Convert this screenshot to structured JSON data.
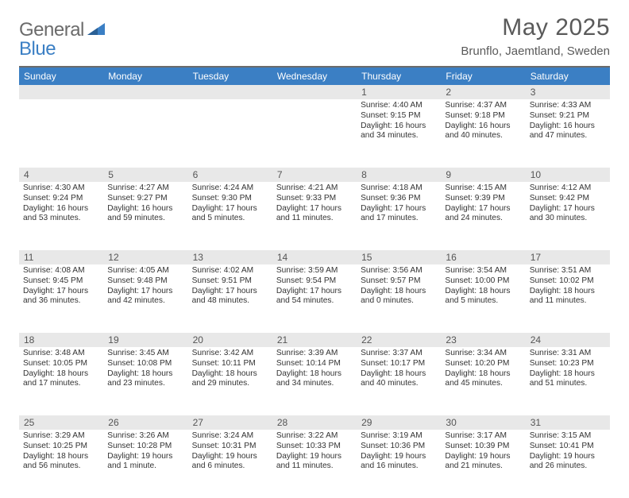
{
  "logo": {
    "part1": "General",
    "part2": "Blue"
  },
  "title": "May 2025",
  "location": "Brunflo, Jaemtland, Sweden",
  "colors": {
    "header_bar": "#3b7fc4",
    "daynum_bg": "#e8e8e8",
    "rule": "#6b6b6b",
    "text": "#333333",
    "title_text": "#5a5a5a",
    "logo_gray": "#6b6b6b",
    "logo_blue": "#3b7fc4",
    "background": "#ffffff"
  },
  "daysOfWeek": [
    "Sunday",
    "Monday",
    "Tuesday",
    "Wednesday",
    "Thursday",
    "Friday",
    "Saturday"
  ],
  "weeks": [
    [
      null,
      null,
      null,
      null,
      {
        "n": "1",
        "sr": "4:40 AM",
        "ss": "9:15 PM",
        "dl": "16 hours and 34 minutes."
      },
      {
        "n": "2",
        "sr": "4:37 AM",
        "ss": "9:18 PM",
        "dl": "16 hours and 40 minutes."
      },
      {
        "n": "3",
        "sr": "4:33 AM",
        "ss": "9:21 PM",
        "dl": "16 hours and 47 minutes."
      }
    ],
    [
      {
        "n": "4",
        "sr": "4:30 AM",
        "ss": "9:24 PM",
        "dl": "16 hours and 53 minutes."
      },
      {
        "n": "5",
        "sr": "4:27 AM",
        "ss": "9:27 PM",
        "dl": "16 hours and 59 minutes."
      },
      {
        "n": "6",
        "sr": "4:24 AM",
        "ss": "9:30 PM",
        "dl": "17 hours and 5 minutes."
      },
      {
        "n": "7",
        "sr": "4:21 AM",
        "ss": "9:33 PM",
        "dl": "17 hours and 11 minutes."
      },
      {
        "n": "8",
        "sr": "4:18 AM",
        "ss": "9:36 PM",
        "dl": "17 hours and 17 minutes."
      },
      {
        "n": "9",
        "sr": "4:15 AM",
        "ss": "9:39 PM",
        "dl": "17 hours and 24 minutes."
      },
      {
        "n": "10",
        "sr": "4:12 AM",
        "ss": "9:42 PM",
        "dl": "17 hours and 30 minutes."
      }
    ],
    [
      {
        "n": "11",
        "sr": "4:08 AM",
        "ss": "9:45 PM",
        "dl": "17 hours and 36 minutes."
      },
      {
        "n": "12",
        "sr": "4:05 AM",
        "ss": "9:48 PM",
        "dl": "17 hours and 42 minutes."
      },
      {
        "n": "13",
        "sr": "4:02 AM",
        "ss": "9:51 PM",
        "dl": "17 hours and 48 minutes."
      },
      {
        "n": "14",
        "sr": "3:59 AM",
        "ss": "9:54 PM",
        "dl": "17 hours and 54 minutes."
      },
      {
        "n": "15",
        "sr": "3:56 AM",
        "ss": "9:57 PM",
        "dl": "18 hours and 0 minutes."
      },
      {
        "n": "16",
        "sr": "3:54 AM",
        "ss": "10:00 PM",
        "dl": "18 hours and 5 minutes."
      },
      {
        "n": "17",
        "sr": "3:51 AM",
        "ss": "10:02 PM",
        "dl": "18 hours and 11 minutes."
      }
    ],
    [
      {
        "n": "18",
        "sr": "3:48 AM",
        "ss": "10:05 PM",
        "dl": "18 hours and 17 minutes."
      },
      {
        "n": "19",
        "sr": "3:45 AM",
        "ss": "10:08 PM",
        "dl": "18 hours and 23 minutes."
      },
      {
        "n": "20",
        "sr": "3:42 AM",
        "ss": "10:11 PM",
        "dl": "18 hours and 29 minutes."
      },
      {
        "n": "21",
        "sr": "3:39 AM",
        "ss": "10:14 PM",
        "dl": "18 hours and 34 minutes."
      },
      {
        "n": "22",
        "sr": "3:37 AM",
        "ss": "10:17 PM",
        "dl": "18 hours and 40 minutes."
      },
      {
        "n": "23",
        "sr": "3:34 AM",
        "ss": "10:20 PM",
        "dl": "18 hours and 45 minutes."
      },
      {
        "n": "24",
        "sr": "3:31 AM",
        "ss": "10:23 PM",
        "dl": "18 hours and 51 minutes."
      }
    ],
    [
      {
        "n": "25",
        "sr": "3:29 AM",
        "ss": "10:25 PM",
        "dl": "18 hours and 56 minutes."
      },
      {
        "n": "26",
        "sr": "3:26 AM",
        "ss": "10:28 PM",
        "dl": "19 hours and 1 minute."
      },
      {
        "n": "27",
        "sr": "3:24 AM",
        "ss": "10:31 PM",
        "dl": "19 hours and 6 minutes."
      },
      {
        "n": "28",
        "sr": "3:22 AM",
        "ss": "10:33 PM",
        "dl": "19 hours and 11 minutes."
      },
      {
        "n": "29",
        "sr": "3:19 AM",
        "ss": "10:36 PM",
        "dl": "19 hours and 16 minutes."
      },
      {
        "n": "30",
        "sr": "3:17 AM",
        "ss": "10:39 PM",
        "dl": "19 hours and 21 minutes."
      },
      {
        "n": "31",
        "sr": "3:15 AM",
        "ss": "10:41 PM",
        "dl": "19 hours and 26 minutes."
      }
    ]
  ],
  "labels": {
    "sunrise": "Sunrise:",
    "sunset": "Sunset:",
    "daylight": "Daylight:"
  }
}
